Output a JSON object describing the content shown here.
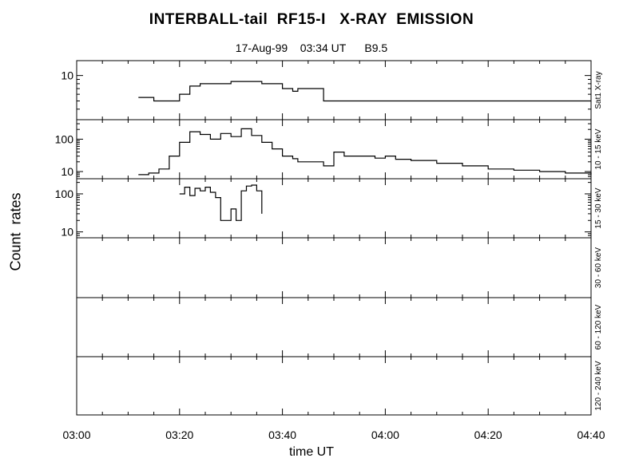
{
  "title": "INTERBALL-tail  RF15-I   X-RAY  EMISSION",
  "subtitle": "17-Aug-99    03:34 UT      B9.5",
  "ylabel": "Count  rates",
  "xlabel": "time UT",
  "chart_data": {
    "type": "line",
    "title": "INTERBALL-tail  RF15-I   X-RAY  EMISSION",
    "subtitle": "17-Aug-99    03:34 UT      B9.5",
    "xlabel": "time UT",
    "ylabel": "Count  rates",
    "x_ticks": [
      "03:00",
      "03:20",
      "03:40",
      "04:00",
      "04:20",
      "04:40"
    ],
    "x_range_minutes": [
      0,
      100
    ],
    "y_scale": "log",
    "panels": [
      {
        "name": "Sat1 X-ray",
        "y_ticks": [
          "10"
        ],
        "y_range": [
          3,
          15
        ],
        "series": {
          "x": [
            12,
            15,
            18,
            20,
            22,
            24,
            26,
            28,
            30,
            32,
            34,
            36,
            38,
            40,
            42,
            43,
            44,
            45,
            47,
            48,
            50,
            55,
            60,
            65,
            70,
            75,
            80,
            85,
            90,
            95,
            100
          ],
          "y": [
            5.5,
            5,
            5,
            6,
            7.5,
            8,
            8,
            8,
            8.5,
            8.5,
            8.5,
            8,
            8,
            7,
            6.5,
            7,
            7,
            7,
            7,
            5,
            5,
            5,
            5,
            5,
            5,
            5,
            5,
            5,
            5,
            5,
            5
          ]
        }
      },
      {
        "name": "10 - 15 keV",
        "y_ticks": [
          "100",
          "10"
        ],
        "y_range": [
          6,
          400
        ],
        "series": {
          "x": [
            12,
            14,
            16,
            18,
            20,
            22,
            24,
            26,
            28,
            30,
            32,
            34,
            36,
            38,
            40,
            42,
            43,
            44,
            46,
            47,
            48,
            50,
            52,
            55,
            58,
            60,
            62,
            65,
            70,
            75,
            80,
            85,
            90,
            95,
            100
          ],
          "y": [
            8,
            9,
            12,
            30,
            80,
            170,
            140,
            100,
            150,
            120,
            210,
            130,
            80,
            50,
            30,
            25,
            20,
            20,
            20,
            20,
            15,
            40,
            30,
            30,
            26,
            30,
            24,
            22,
            18,
            15,
            12,
            11,
            10,
            9,
            8
          ]
        }
      },
      {
        "name": "15 - 30 keV",
        "y_ticks": [
          "100",
          "10"
        ],
        "y_range": [
          7,
          250
        ],
        "series": {
          "x": [
            20,
            21,
            22,
            23,
            24,
            25,
            26,
            27,
            28,
            29,
            30,
            31,
            32,
            33,
            34,
            35,
            36
          ],
          "y": [
            100,
            150,
            90,
            140,
            120,
            150,
            110,
            80,
            20,
            20,
            40,
            20,
            120,
            160,
            170,
            120,
            30
          ]
        }
      },
      {
        "name": "30 - 60 keV",
        "y_ticks": [],
        "series": {
          "x": [],
          "y": []
        }
      },
      {
        "name": "60 - 120 keV",
        "y_ticks": [],
        "series": {
          "x": [],
          "y": []
        }
      },
      {
        "name": "120 - 240 keV",
        "y_ticks": [],
        "series": {
          "x": [],
          "y": []
        }
      }
    ]
  }
}
